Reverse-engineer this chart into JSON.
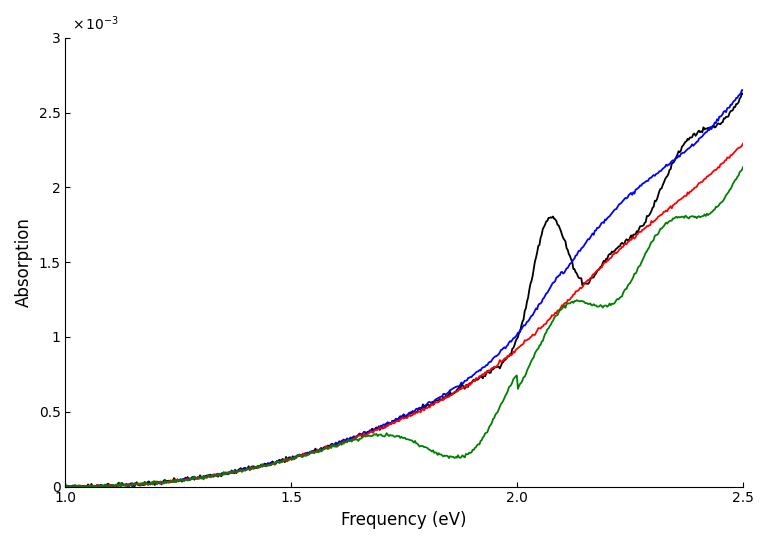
{
  "title": "",
  "xlabel": "Frequency (eV)",
  "ylabel": "Absorption",
  "xlim": [
    1.0,
    2.5
  ],
  "ylim": [
    0,
    0.003
  ],
  "yticks": [
    0,
    0.0005,
    0.001,
    0.0015,
    0.002,
    0.0025,
    0.003
  ],
  "ytick_labels": [
    "0",
    "0.5",
    "1",
    "1.5",
    "2",
    "2.5",
    "3"
  ],
  "xticks": [
    1.0,
    1.5,
    2.0,
    2.5
  ],
  "colors": [
    "black",
    "blue",
    "red",
    "green"
  ],
  "linewidth": 1.3,
  "figsize": [
    7.69,
    5.44
  ],
  "dpi": 100
}
